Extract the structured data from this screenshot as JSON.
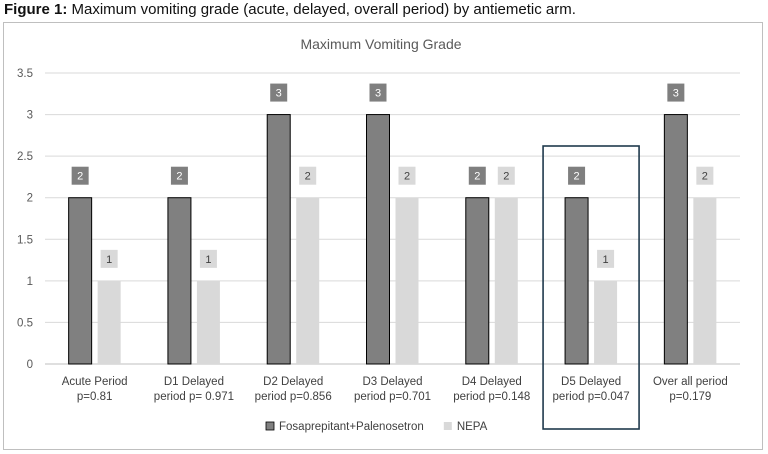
{
  "caption": {
    "label": "Figure 1:",
    "text": "Maximum vomiting grade (acute, delayed, overall period) by antiemetic arm."
  },
  "chart_data": {
    "type": "bar",
    "title": "Maximum Vomiting Grade",
    "categories": [
      [
        "Acute Period",
        "p=0.81"
      ],
      [
        "D1 Delayed",
        "period p= 0.971"
      ],
      [
        "D2 Delayed",
        "period p=0.856"
      ],
      [
        "D3 Delayed",
        "period p=0.701"
      ],
      [
        "D4 Delayed",
        "period p=0.148"
      ],
      [
        "D5 Delayed",
        "period p=0.047"
      ],
      [
        "Over all period",
        "p=0.179"
      ]
    ],
    "series": [
      {
        "name": "Fosaprepitant+Palenosetron",
        "values": [
          2,
          2,
          3,
          3,
          2,
          2,
          3
        ],
        "color": "#808080",
        "label_bg": "#7f7f7f",
        "label_color": "#ffffff"
      },
      {
        "name": "NEPA",
        "values": [
          1,
          1,
          2,
          2,
          2,
          1,
          2
        ],
        "color": "#d9d9d9",
        "label_bg": "#d9d9d9",
        "label_color": "#404040"
      }
    ],
    "ylim": [
      0,
      3.5
    ],
    "yticks": [
      "0",
      "0.5",
      "1",
      "1.5",
      "2",
      "2.5",
      "3",
      "3.5"
    ],
    "grid": true,
    "legend": "bottom",
    "highlight_category": "D5 Delayed"
  }
}
